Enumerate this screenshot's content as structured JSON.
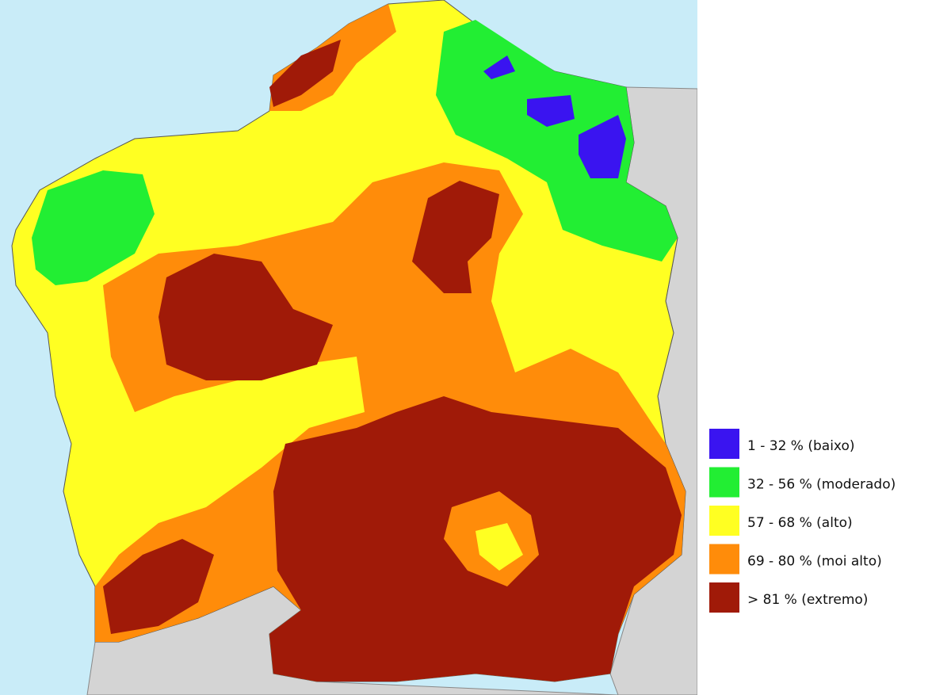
{
  "legend": {
    "items": [
      {
        "label": "1 - 32 % (baixo)",
        "color": "#3a14f0"
      },
      {
        "label": "32 - 56 % (moderado)",
        "color": "#22ee33"
      },
      {
        "label": "57 - 68 % (alto)",
        "color": "#ffff22"
      },
      {
        "label": "69 - 80 % (moi alto)",
        "color": "#ff8c0a"
      },
      {
        "label": "> 81 % (extremo)",
        "color": "#a01a08"
      }
    ]
  }
}
